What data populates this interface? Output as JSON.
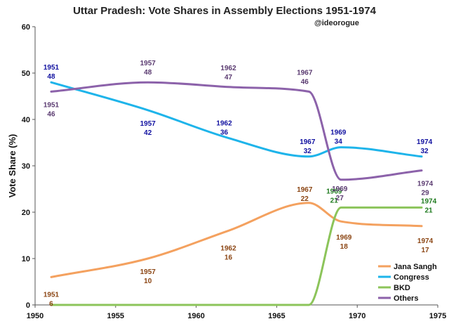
{
  "chart_data": {
    "type": "line",
    "title": "Uttar Pradesh: Vote Shares in Assembly Elections 1951-1974",
    "credit": "@ideorogue",
    "xlabel": "",
    "ylabel": "Vote Share (%)",
    "xlim": [
      1950,
      1975
    ],
    "ylim": [
      0,
      60
    ],
    "xticks": [
      1950,
      1955,
      1960,
      1965,
      1970,
      1975
    ],
    "yticks": [
      0,
      10,
      20,
      30,
      40,
      50,
      60
    ],
    "legend_position": "bottom-right",
    "series": [
      {
        "name": "Jana Sangh",
        "color": "#F4A15F",
        "label_color": "#8B4513",
        "points": [
          [
            1951,
            6
          ],
          [
            1957,
            10
          ],
          [
            1962,
            16
          ],
          [
            1967,
            22
          ],
          [
            1969,
            18
          ],
          [
            1974,
            17
          ]
        ],
        "labels": [
          {
            "year": "1951",
            "value": "6"
          },
          {
            "year": "1957",
            "value": "10"
          },
          {
            "year": "1962",
            "value": "16"
          },
          {
            "year": "1967",
            "value": "22"
          },
          {
            "year": "1969",
            "value": "18"
          },
          {
            "year": "1974",
            "value": "17"
          }
        ]
      },
      {
        "name": "Congress",
        "color": "#1EB4EA",
        "label_color": "#1010A0",
        "points": [
          [
            1951,
            48
          ],
          [
            1957,
            42
          ],
          [
            1962,
            36
          ],
          [
            1967,
            32
          ],
          [
            1969,
            34
          ],
          [
            1974,
            32
          ]
        ],
        "labels": [
          {
            "year": "1951",
            "value": "48"
          },
          {
            "year": "1957",
            "value": "42"
          },
          {
            "year": "1962",
            "value": "36"
          },
          {
            "year": "1967",
            "value": "32"
          },
          {
            "year": "1969",
            "value": "34"
          },
          {
            "year": "1974",
            "value": "32"
          }
        ]
      },
      {
        "name": "BKD",
        "color": "#8CC45A",
        "label_color": "#1E7A1E",
        "points": [
          [
            1951,
            0
          ],
          [
            1957,
            0
          ],
          [
            1962,
            0
          ],
          [
            1967,
            0
          ],
          [
            1969,
            21
          ],
          [
            1974,
            21
          ]
        ],
        "labels": [
          {
            "year": "1969",
            "value": "21"
          },
          {
            "year": "1974",
            "value": "21"
          }
        ]
      },
      {
        "name": "Others",
        "color": "#8C62AA",
        "label_color": "#5A3A70",
        "points": [
          [
            1951,
            46
          ],
          [
            1957,
            48
          ],
          [
            1962,
            47
          ],
          [
            1967,
            46
          ],
          [
            1969,
            27
          ],
          [
            1974,
            29
          ]
        ],
        "labels": [
          {
            "year": "1951",
            "value": "46"
          },
          {
            "year": "1957",
            "value": "48"
          },
          {
            "year": "1962",
            "value": "47"
          },
          {
            "year": "1967",
            "value": "46"
          },
          {
            "year": "1969",
            "value": "27"
          },
          {
            "year": "1974",
            "value": "29"
          }
        ]
      }
    ]
  }
}
